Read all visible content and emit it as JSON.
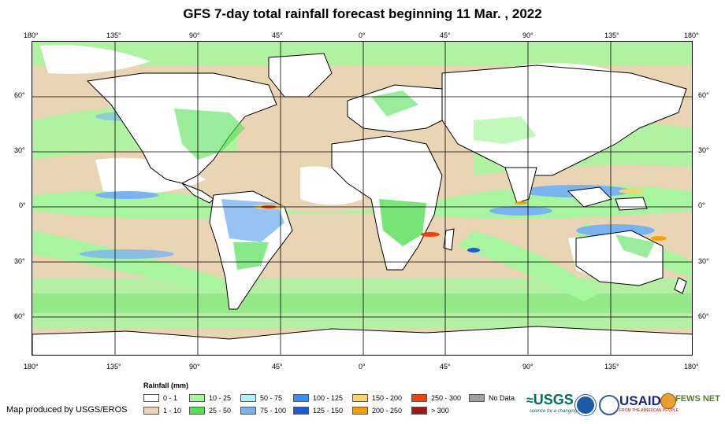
{
  "title": "GFS 7-day total rainfall forecast beginning 11 Mar. , 2022",
  "axes": {
    "top_lon": [
      "180°",
      "135°",
      "90°",
      "45°",
      "0°",
      "45°",
      "90°",
      "135°",
      "180°"
    ],
    "bottom_lon": [
      "180°",
      "135°",
      "90°",
      "45°",
      "0°",
      "45°",
      "90°",
      "135°",
      "180°"
    ],
    "left_lat": [
      "60°",
      "30°",
      "0°",
      "30°",
      "60°"
    ],
    "right_lat": [
      "60°",
      "30°",
      "0°",
      "30°",
      "60°"
    ]
  },
  "legend": {
    "title": "Rainfall (mm)",
    "items": [
      {
        "label": "0 - 1",
        "color": "#ffffff"
      },
      {
        "label": "1 - 10",
        "color": "#e9d5b4"
      },
      {
        "label": "10 - 25",
        "color": "#a8f5a0"
      },
      {
        "label": "25 - 50",
        "color": "#55e055"
      },
      {
        "label": "50 - 75",
        "color": "#b4f0f8"
      },
      {
        "label": "75 - 100",
        "color": "#7ab4f0"
      },
      {
        "label": "100 - 125",
        "color": "#3f8cf0"
      },
      {
        "label": "125 - 150",
        "color": "#1e5adc"
      },
      {
        "label": "150 - 200",
        "color": "#fcd26e"
      },
      {
        "label": "200 - 250",
        "color": "#f8a000"
      },
      {
        "label": "250 - 300",
        "color": "#f04010"
      },
      {
        "label": "> 300",
        "color": "#a01818"
      },
      {
        "label": "No Data",
        "color": "#a0a0a0"
      }
    ]
  },
  "credit": "Map produced by USGS/EROS",
  "logos": {
    "usgs": "USGS",
    "usgs_tagline": "science for a changing world",
    "usaid": "USAID",
    "usaid_tagline": "FROM THE AMERICAN PEOPLE",
    "fews": "FEWS NET"
  },
  "colors": {
    "land_outline": "#000000",
    "grid": "#000000",
    "ocean_base": "#e9d5b4"
  }
}
